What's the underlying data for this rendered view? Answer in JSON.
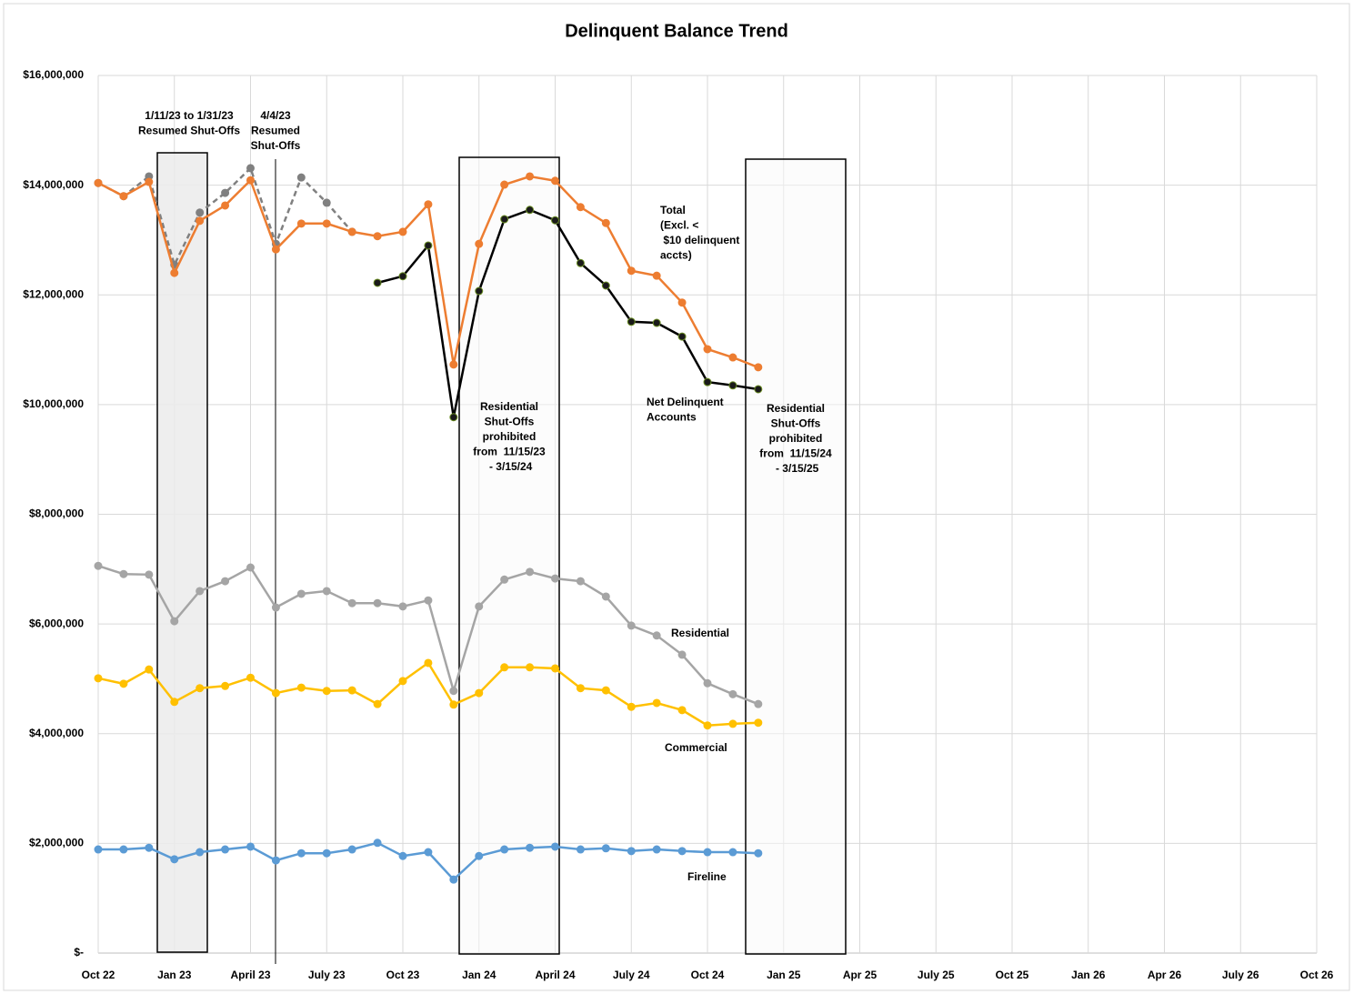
{
  "chart_data": {
    "type": "line",
    "title": "Delinquent Balance Trend",
    "categories": [
      "Oct 22",
      null,
      null,
      "Jan 23",
      null,
      null,
      "April 23",
      null,
      null,
      "July 23",
      null,
      null,
      "Oct 23",
      null,
      null,
      "Jan 24",
      null,
      null,
      "April 24",
      null,
      null,
      "July 24",
      null,
      null,
      "Oct 24",
      null,
      null,
      "Jan 25",
      null,
      null,
      "Apr 25",
      null,
      null,
      "July 25",
      null,
      null,
      "Oct 25",
      null,
      null,
      "Jan 26",
      null,
      null,
      "Apr 26",
      null,
      null,
      "July 26",
      null,
      null,
      "Oct 26"
    ],
    "ylim": [
      0,
      16000000
    ],
    "yticks": [
      {
        "value": 0,
        "label": "$-"
      },
      {
        "value": 2000000,
        "label": "$2,000,000"
      },
      {
        "value": 4000000,
        "label": "$4,000,000"
      },
      {
        "value": 6000000,
        "label": "$6,000,000"
      },
      {
        "value": 8000000,
        "label": "$8,000,000"
      },
      {
        "value": 10000000,
        "label": "$10,000,000"
      },
      {
        "value": 12000000,
        "label": "$12,000,000"
      },
      {
        "value": 14000000,
        "label": "$14,000,000"
      },
      {
        "value": 16000000,
        "label": "$16,000,000"
      }
    ],
    "grid": true,
    "series": [
      {
        "color": "#808080",
        "dashed": true,
        "values": [
          14040000,
          13800000,
          14160000,
          12550000,
          13500000,
          13860000,
          14310000,
          12930000,
          14140000,
          13680000,
          13150000,
          null,
          null,
          null,
          null,
          null,
          null,
          null,
          null,
          null,
          null,
          null,
          null,
          null,
          null,
          null,
          null,
          null,
          null,
          null,
          null,
          null,
          null,
          null,
          null,
          null,
          null,
          null,
          null,
          null,
          null,
          null,
          null,
          null,
          null,
          null,
          null,
          null,
          null
        ]
      },
      {
        "color": "#ed7d31",
        "values": [
          14040000,
          13800000,
          14060000,
          12400000,
          13350000,
          13630000,
          14090000,
          12830000,
          13300000,
          13300000,
          13150000,
          13070000,
          13150000,
          13650000,
          10730000,
          12930000,
          14010000,
          14160000,
          14080000,
          13600000,
          13310000,
          12440000,
          12350000,
          11860000,
          11010000,
          10860000,
          10680000,
          null,
          null,
          null,
          null,
          null,
          null,
          null,
          null,
          null,
          null,
          null,
          null,
          null,
          null,
          null,
          null,
          null,
          null,
          null,
          null,
          null,
          null
        ]
      },
      {
        "color": "#000000",
        "values": [
          null,
          null,
          null,
          null,
          null,
          null,
          null,
          null,
          null,
          null,
          null,
          12220000,
          12340000,
          12900000,
          9770000,
          12070000,
          13380000,
          13550000,
          13360000,
          12580000,
          12170000,
          11510000,
          11490000,
          11240000,
          10410000,
          10350000,
          10280000,
          null,
          null,
          null,
          null,
          null,
          null,
          null,
          null,
          null,
          null,
          null,
          null,
          null,
          null,
          null,
          null,
          null,
          null,
          null,
          null,
          null,
          null
        ]
      },
      {
        "name": "Residential",
        "color": "#a5a5a5",
        "values": [
          7060000,
          6910000,
          6900000,
          6050000,
          6600000,
          6780000,
          7030000,
          6300000,
          6550000,
          6600000,
          6380000,
          6380000,
          6320000,
          6430000,
          4780000,
          6320000,
          6810000,
          6950000,
          6830000,
          6780000,
          6500000,
          5970000,
          5790000,
          5440000,
          4920000,
          4720000,
          4540000,
          null,
          null,
          null,
          null,
          null,
          null,
          null,
          null,
          null,
          null,
          null,
          null,
          null,
          null,
          null,
          null,
          null,
          null,
          null,
          null,
          null,
          null
        ]
      },
      {
        "name": "Commercial",
        "color": "#ffc000",
        "values": [
          5010000,
          4910000,
          5170000,
          4580000,
          4830000,
          4870000,
          5020000,
          4740000,
          4840000,
          4780000,
          4790000,
          4540000,
          4960000,
          5290000,
          4530000,
          4740000,
          5210000,
          5210000,
          5190000,
          4830000,
          4790000,
          4490000,
          4560000,
          4430000,
          4150000,
          4180000,
          4200000,
          null,
          null,
          null,
          null,
          null,
          null,
          null,
          null,
          null,
          null,
          null,
          null,
          null,
          null,
          null,
          null,
          null,
          null,
          null,
          null,
          null,
          null
        ]
      },
      {
        "name": "Fireline",
        "color": "#5b9bd5",
        "values": [
          1890000,
          1890000,
          1920000,
          1710000,
          1840000,
          1890000,
          1940000,
          1690000,
          1820000,
          1820000,
          1890000,
          2010000,
          1770000,
          1840000,
          1340000,
          1770000,
          1890000,
          1920000,
          1940000,
          1890000,
          1910000,
          1860000,
          1890000,
          1860000,
          1840000,
          1840000,
          1820000,
          null,
          null,
          null,
          null,
          null,
          null,
          null,
          null,
          null,
          null,
          null,
          null,
          null,
          null,
          null,
          null,
          null,
          null,
          null,
          null,
          null,
          null
        ]
      }
    ],
    "annotations": [
      [
        "1/11/23 to 1/31/23",
        "Resumed Shut-Offs"
      ],
      [
        "4/4/23",
        "Resumed",
        "Shut-Offs"
      ],
      [
        "Total",
        "(Excl. <",
        " $10 delinquent",
        "accts)"
      ],
      [
        "Net Delinquent",
        "Accounts"
      ],
      [
        "Residential",
        "Shut-Offs",
        "prohibited",
        "from  11/15/23",
        " - 3/15/24"
      ],
      [
        "Residential",
        "Shut-Offs",
        "prohibited",
        "from  11/15/24",
        " - 3/15/25"
      ]
    ]
  }
}
